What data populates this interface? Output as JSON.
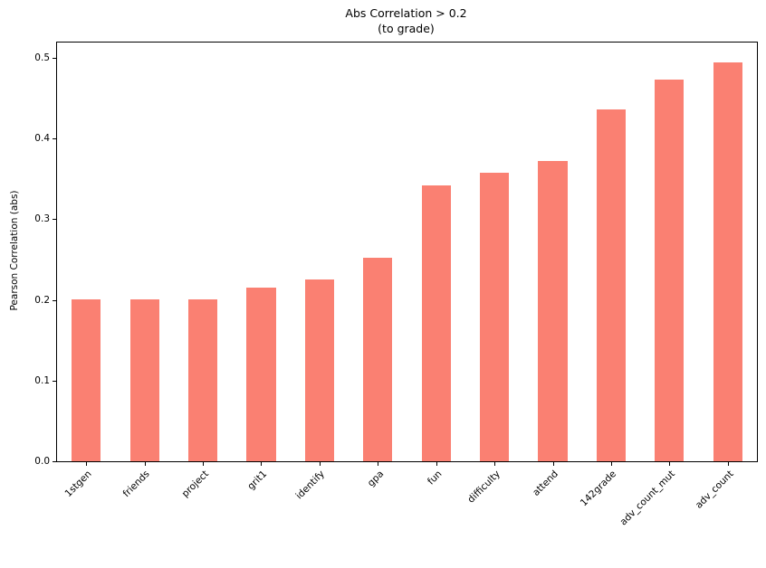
{
  "chart_data": {
    "type": "bar",
    "title": "Abs Correlation > 0.2",
    "subtitle": "(to grade)",
    "ylabel": "Pearson Correlation (abs)",
    "xlabel": "",
    "categories": [
      "1stgen",
      "friends",
      "project",
      "grit1",
      "identify",
      "gpa",
      "fun",
      "difficulty",
      "attend",
      "142grade",
      "adv_count_mut",
      "adv_count"
    ],
    "values": [
      0.201,
      0.201,
      0.201,
      0.215,
      0.225,
      0.252,
      0.342,
      0.358,
      0.372,
      0.436,
      0.473,
      0.494
    ],
    "yticks": [
      0.0,
      0.1,
      0.2,
      0.3,
      0.4,
      0.5
    ],
    "ylim": [
      0,
      0.519
    ],
    "bar_color": "#FA8072",
    "axis_color": "#000000",
    "background_color": "#ffffff",
    "grid": false,
    "legend": null,
    "xtick_rotation_deg": 45
  }
}
